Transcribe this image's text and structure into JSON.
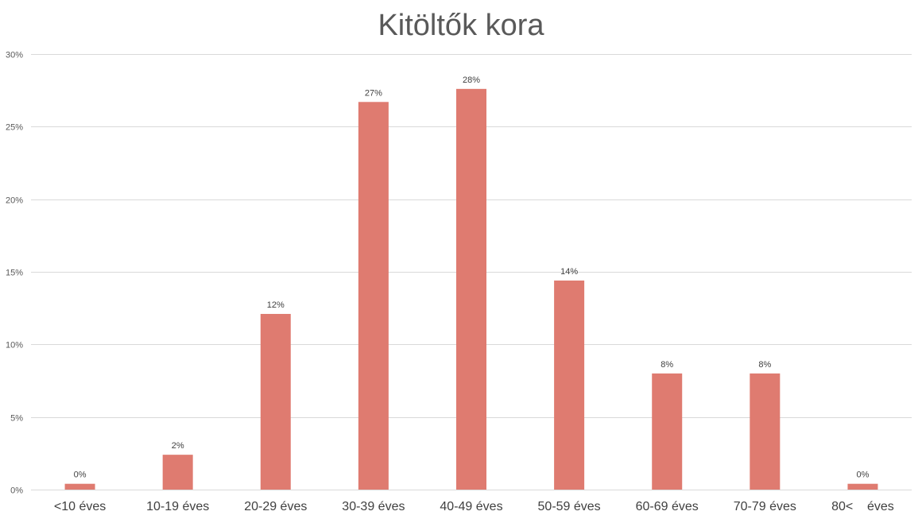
{
  "chart_data": {
    "type": "bar",
    "title": "Kitöltők kora",
    "xlabel": "",
    "ylabel": "",
    "categories": [
      "<10 éves",
      "10-19 éves",
      "20-29 éves",
      "30-39 éves",
      "40-49 éves",
      "50-59 éves",
      "60-69 éves",
      "70-79 éves",
      "80<    éves"
    ],
    "values": [
      0.4,
      2.4,
      12.1,
      26.7,
      27.6,
      14.4,
      8.0,
      8.0,
      0.4
    ],
    "data_labels": [
      "0%",
      "2%",
      "12%",
      "27%",
      "28%",
      "14%",
      "8%",
      "8%",
      "0%"
    ],
    "ylim": [
      0,
      30
    ],
    "y_ticks": [
      0,
      5,
      10,
      15,
      20,
      25,
      30
    ],
    "y_tick_labels": [
      "0%",
      "5%",
      "10%",
      "15%",
      "20%",
      "25%",
      "30%"
    ],
    "grid": true,
    "legend": "none",
    "bar_color": "#df7b70"
  }
}
